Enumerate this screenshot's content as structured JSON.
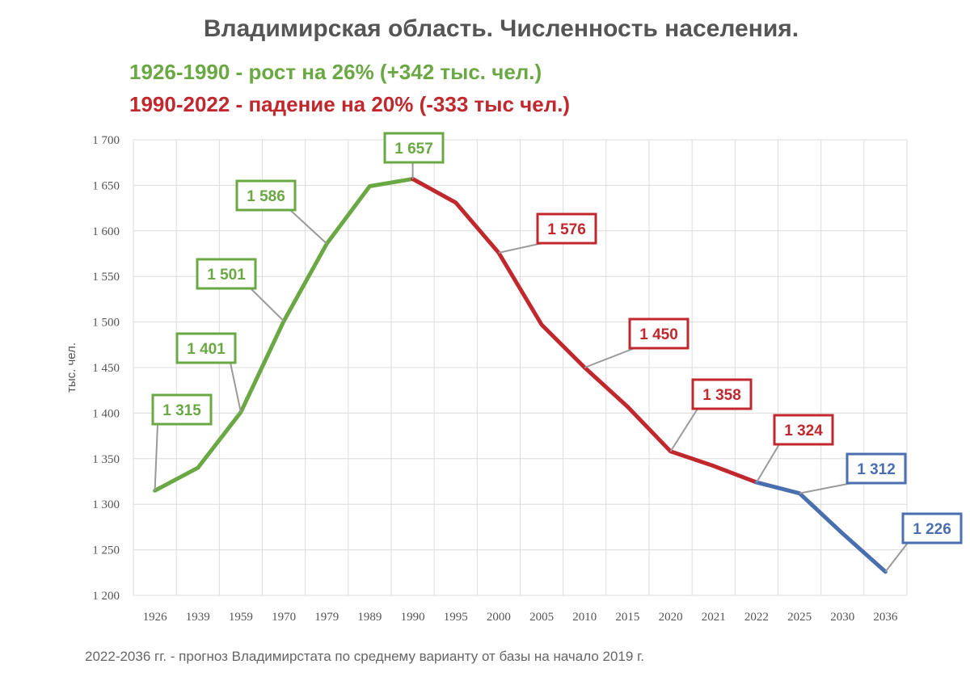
{
  "chart_data": {
    "type": "line",
    "title": "Владимирская область. Численность населения.",
    "subtitle_growth": "1926-1990 - рост на 26% (+342 тыс. чел.)",
    "subtitle_decline": "1990-2022 - падение на 20% (-333 тыс чел.)",
    "ylabel": "тыс. чел.",
    "footnote": "2022-2036 гг. - прогноз Владимирстата по среднему варианту от базы на начало 2019 г.",
    "ylim": [
      1200,
      1700
    ],
    "y_ticks": [
      "1 200",
      "1 250",
      "1 300",
      "1 350",
      "1 400",
      "1 450",
      "1 500",
      "1 550",
      "1 600",
      "1 650",
      "1 700"
    ],
    "grid": true,
    "categories": [
      "1926",
      "1939",
      "1959",
      "1970",
      "1979",
      "1989",
      "1990",
      "1995",
      "2000",
      "2005",
      "2010",
      "2015",
      "2020",
      "2021",
      "2022",
      "2025",
      "2030",
      "2036"
    ],
    "values": [
      1315,
      1340,
      1401,
      1501,
      1586,
      1649,
      1657,
      1631,
      1576,
      1497,
      1450,
      1407,
      1358,
      1342,
      1324,
      1312,
      1268,
      1226
    ],
    "colors": {
      "growth": "#6aa843",
      "decline": "#c0282d",
      "forecast": "#4a6fae",
      "leader": "#9a9a9a"
    },
    "segments": [
      {
        "color": "growth",
        "from": 0,
        "to": 6
      },
      {
        "color": "decline",
        "from": 6,
        "to": 14
      },
      {
        "color": "forecast",
        "from": 14,
        "to": 17
      }
    ],
    "annotations": [
      {
        "text": "1 315",
        "index": 0,
        "color": "growth"
      },
      {
        "text": "1 401",
        "index": 2,
        "color": "growth"
      },
      {
        "text": "1 501",
        "index": 3,
        "color": "growth"
      },
      {
        "text": "1 586",
        "index": 4,
        "color": "growth"
      },
      {
        "text": "1 657",
        "index": 6,
        "color": "growth"
      },
      {
        "text": "1 576",
        "index": 8,
        "color": "decline"
      },
      {
        "text": "1 450",
        "index": 10,
        "color": "decline"
      },
      {
        "text": "1 358",
        "index": 12,
        "color": "decline"
      },
      {
        "text": "1 324",
        "index": 14,
        "color": "decline"
      },
      {
        "text": "1 312",
        "index": 15,
        "color": "forecast"
      },
      {
        "text": "1 226",
        "index": 17,
        "color": "forecast"
      }
    ]
  }
}
